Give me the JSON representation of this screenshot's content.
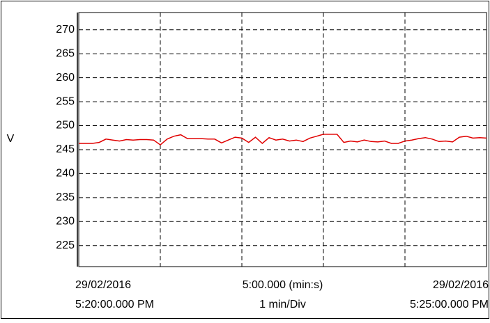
{
  "chart_data": {
    "type": "line",
    "y_label": "V",
    "x_labels": {
      "left": [
        "29/02/2016",
        "5:20:00.000 PM"
      ],
      "center": [
        "5:00.000 (min:s)",
        "1 min/Div"
      ],
      "right": [
        "29/02/2016",
        "5:25:00.000 PM"
      ]
    },
    "x": [
      0,
      5,
      10,
      15,
      20,
      25,
      30,
      35,
      40,
      45,
      50,
      55,
      60,
      65,
      70,
      75,
      80,
      85,
      90,
      95,
      100,
      105,
      110,
      115,
      120,
      125,
      130,
      135,
      140,
      145,
      150,
      155,
      160,
      165,
      170,
      175,
      180,
      185,
      190,
      195,
      200,
      205,
      210,
      215,
      220,
      225,
      230,
      235,
      240,
      245,
      250,
      255,
      260,
      265,
      270,
      275,
      280,
      285,
      290,
      295,
      300
    ],
    "values": [
      246.3,
      246.3,
      246.3,
      246.5,
      247.2,
      247,
      246.8,
      247.1,
      247,
      247.1,
      247.1,
      247,
      246,
      247.2,
      247.8,
      248.1,
      247.3,
      247.3,
      247.3,
      247.2,
      247.2,
      246.4,
      247,
      247.6,
      247.4,
      246.5,
      247.6,
      246.3,
      247.5,
      247,
      247.2,
      246.8,
      247,
      246.7,
      247.4,
      247.8,
      248.2,
      248.2,
      248.2,
      246.5,
      246.8,
      246.6,
      247,
      246.7,
      246.6,
      246.8,
      246.3,
      246.3,
      246.8,
      247,
      247.3,
      247.5,
      247.2,
      246.7,
      246.8,
      246.6,
      247.6,
      247.8,
      247.4,
      247.5,
      247.4
    ],
    "color": "#e00000",
    "xlim": [
      0,
      300
    ],
    "xticks": [
      0,
      60,
      120,
      180,
      240,
      300
    ],
    "ylim": [
      220.6,
      273.6
    ],
    "yticks": [
      225,
      230,
      235,
      240,
      245,
      250,
      255,
      260,
      265,
      270
    ],
    "grid": true
  }
}
